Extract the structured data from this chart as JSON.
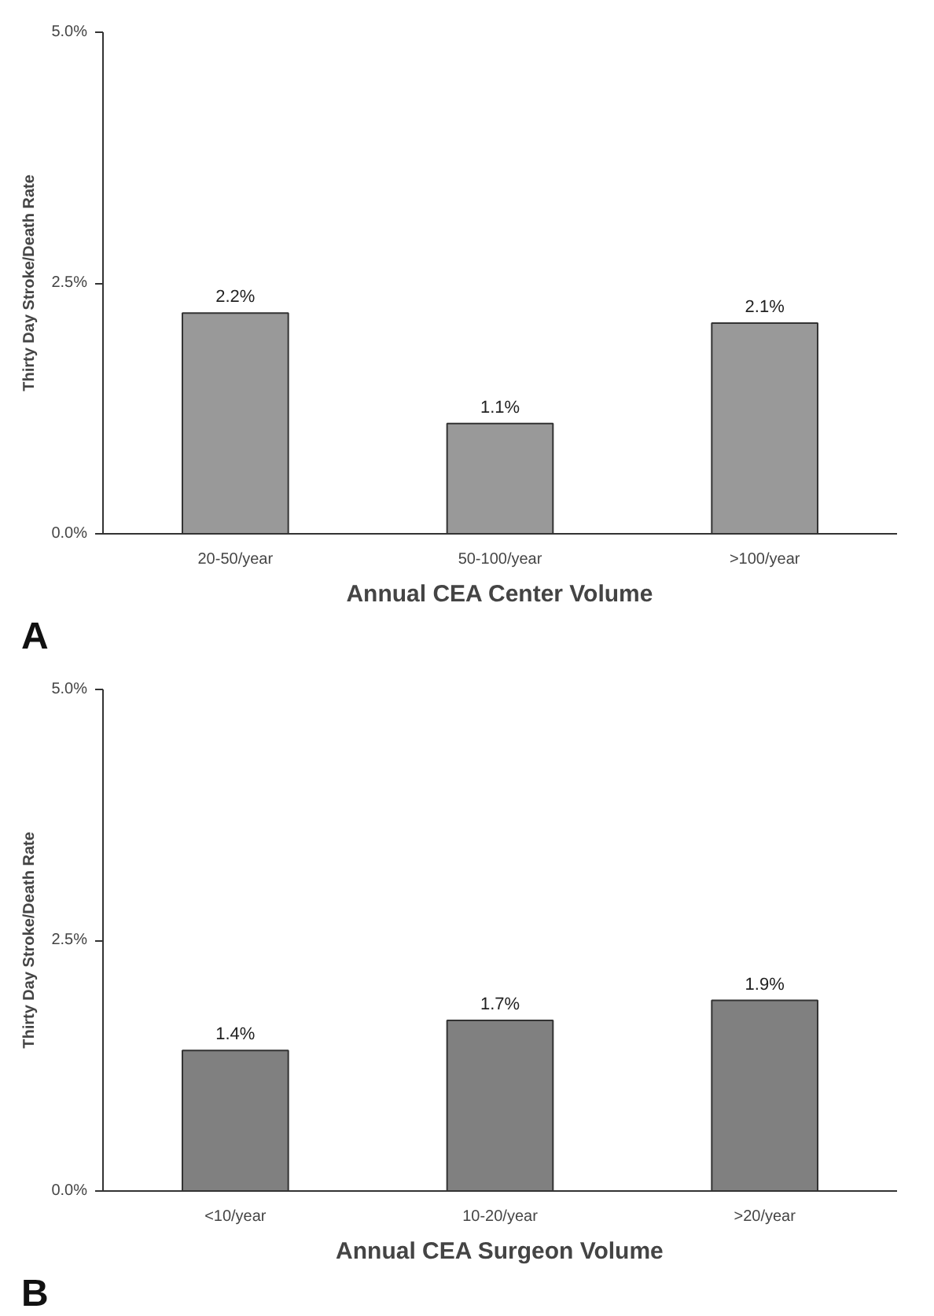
{
  "chart_data": [
    {
      "type": "bar",
      "categories": [
        "20-50/year",
        "50-100/year",
        ">100/year"
      ],
      "values": [
        2.2,
        1.1,
        2.1
      ],
      "value_labels": [
        "2.2%",
        "1.1%",
        "2.1%"
      ],
      "color": "#999999",
      "xlabel": "Annual CEA Center Volume",
      "ylabel": "Thirty Day Stroke/Death Rate",
      "ylim": [
        0,
        5
      ],
      "yticks": [
        {
          "value": 0,
          "label": "0.0%"
        },
        {
          "value": 2.5,
          "label": "2.5%"
        },
        {
          "value": 5,
          "label": "5.0%"
        }
      ],
      "grid": false,
      "annotations": [
        "A"
      ]
    },
    {
      "type": "bar",
      "categories": [
        "<10/year",
        "10-20/year",
        ">20/year"
      ],
      "values": [
        1.4,
        1.7,
        1.9
      ],
      "value_labels": [
        "1.4%",
        "1.7%",
        "1.9%"
      ],
      "color": "#808080",
      "xlabel": "Annual CEA Surgeon Volume",
      "ylabel": "Thirty Day Stroke/Death Rate",
      "ylim": [
        0,
        5
      ],
      "yticks": [
        {
          "value": 0,
          "label": "0.0%"
        },
        {
          "value": 2.5,
          "label": "2.5%"
        },
        {
          "value": 5,
          "label": "5.0%"
        }
      ],
      "grid": false,
      "annotations": [
        "B"
      ]
    }
  ]
}
